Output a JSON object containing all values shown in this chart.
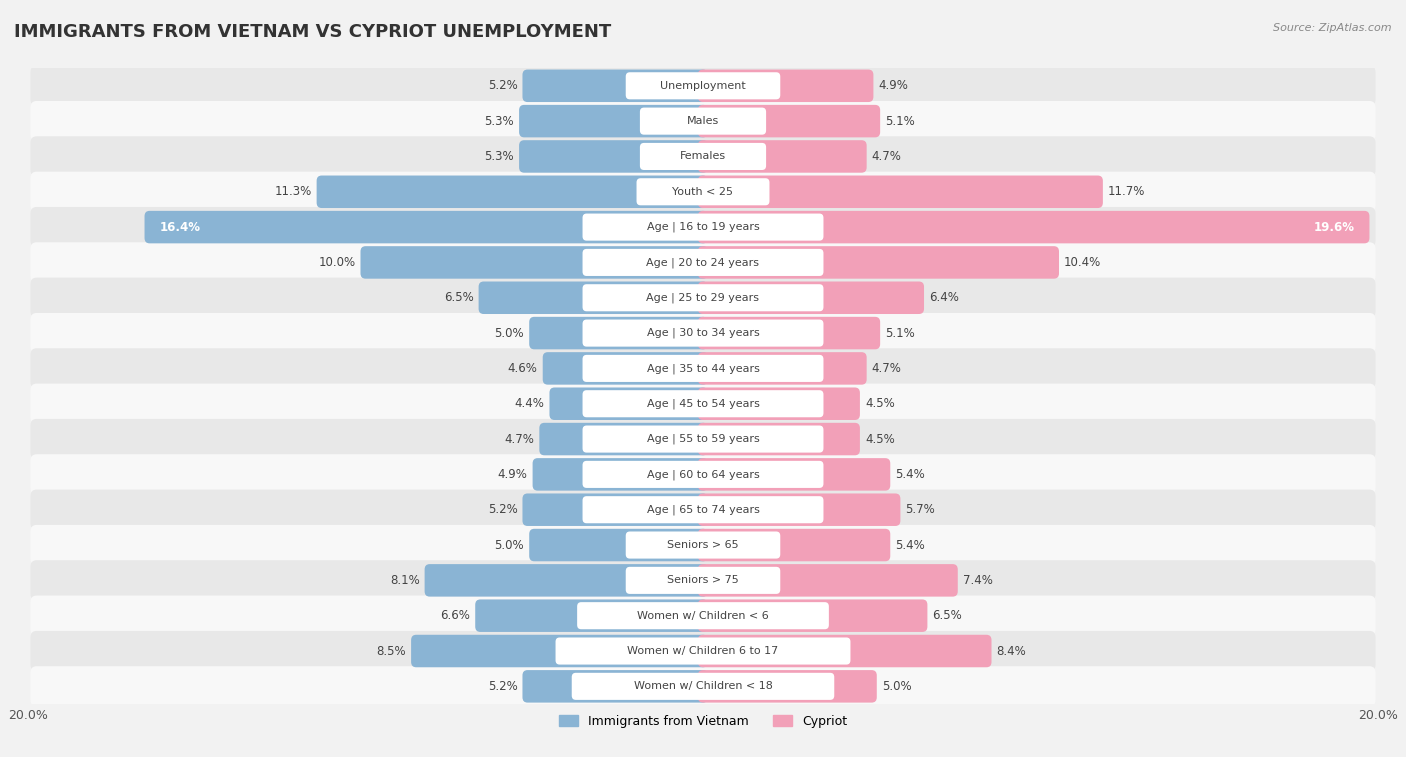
{
  "title": "IMMIGRANTS FROM VIETNAM VS CYPRIOT UNEMPLOYMENT",
  "source": "Source: ZipAtlas.com",
  "categories": [
    "Unemployment",
    "Males",
    "Females",
    "Youth < 25",
    "Age | 16 to 19 years",
    "Age | 20 to 24 years",
    "Age | 25 to 29 years",
    "Age | 30 to 34 years",
    "Age | 35 to 44 years",
    "Age | 45 to 54 years",
    "Age | 55 to 59 years",
    "Age | 60 to 64 years",
    "Age | 65 to 74 years",
    "Seniors > 65",
    "Seniors > 75",
    "Women w/ Children < 6",
    "Women w/ Children 6 to 17",
    "Women w/ Children < 18"
  ],
  "vietnam_values": [
    5.2,
    5.3,
    5.3,
    11.3,
    16.4,
    10.0,
    6.5,
    5.0,
    4.6,
    4.4,
    4.7,
    4.9,
    5.2,
    5.0,
    8.1,
    6.6,
    8.5,
    5.2
  ],
  "cypriot_values": [
    4.9,
    5.1,
    4.7,
    11.7,
    19.6,
    10.4,
    6.4,
    5.1,
    4.7,
    4.5,
    4.5,
    5.4,
    5.7,
    5.4,
    7.4,
    6.5,
    8.4,
    5.0
  ],
  "vietnam_color": "#8ab4d4",
  "cypriot_color": "#f2a0b8",
  "background_color": "#f2f2f2",
  "row_bg_even": "#e8e8e8",
  "row_bg_odd": "#f8f8f8",
  "xlim": 20.0,
  "legend_label_vietnam": "Immigrants from Vietnam",
  "legend_label_cypriot": "Cypriot",
  "title_fontsize": 13,
  "source_fontsize": 8,
  "label_fontsize": 8.5,
  "cat_fontsize": 8.0
}
